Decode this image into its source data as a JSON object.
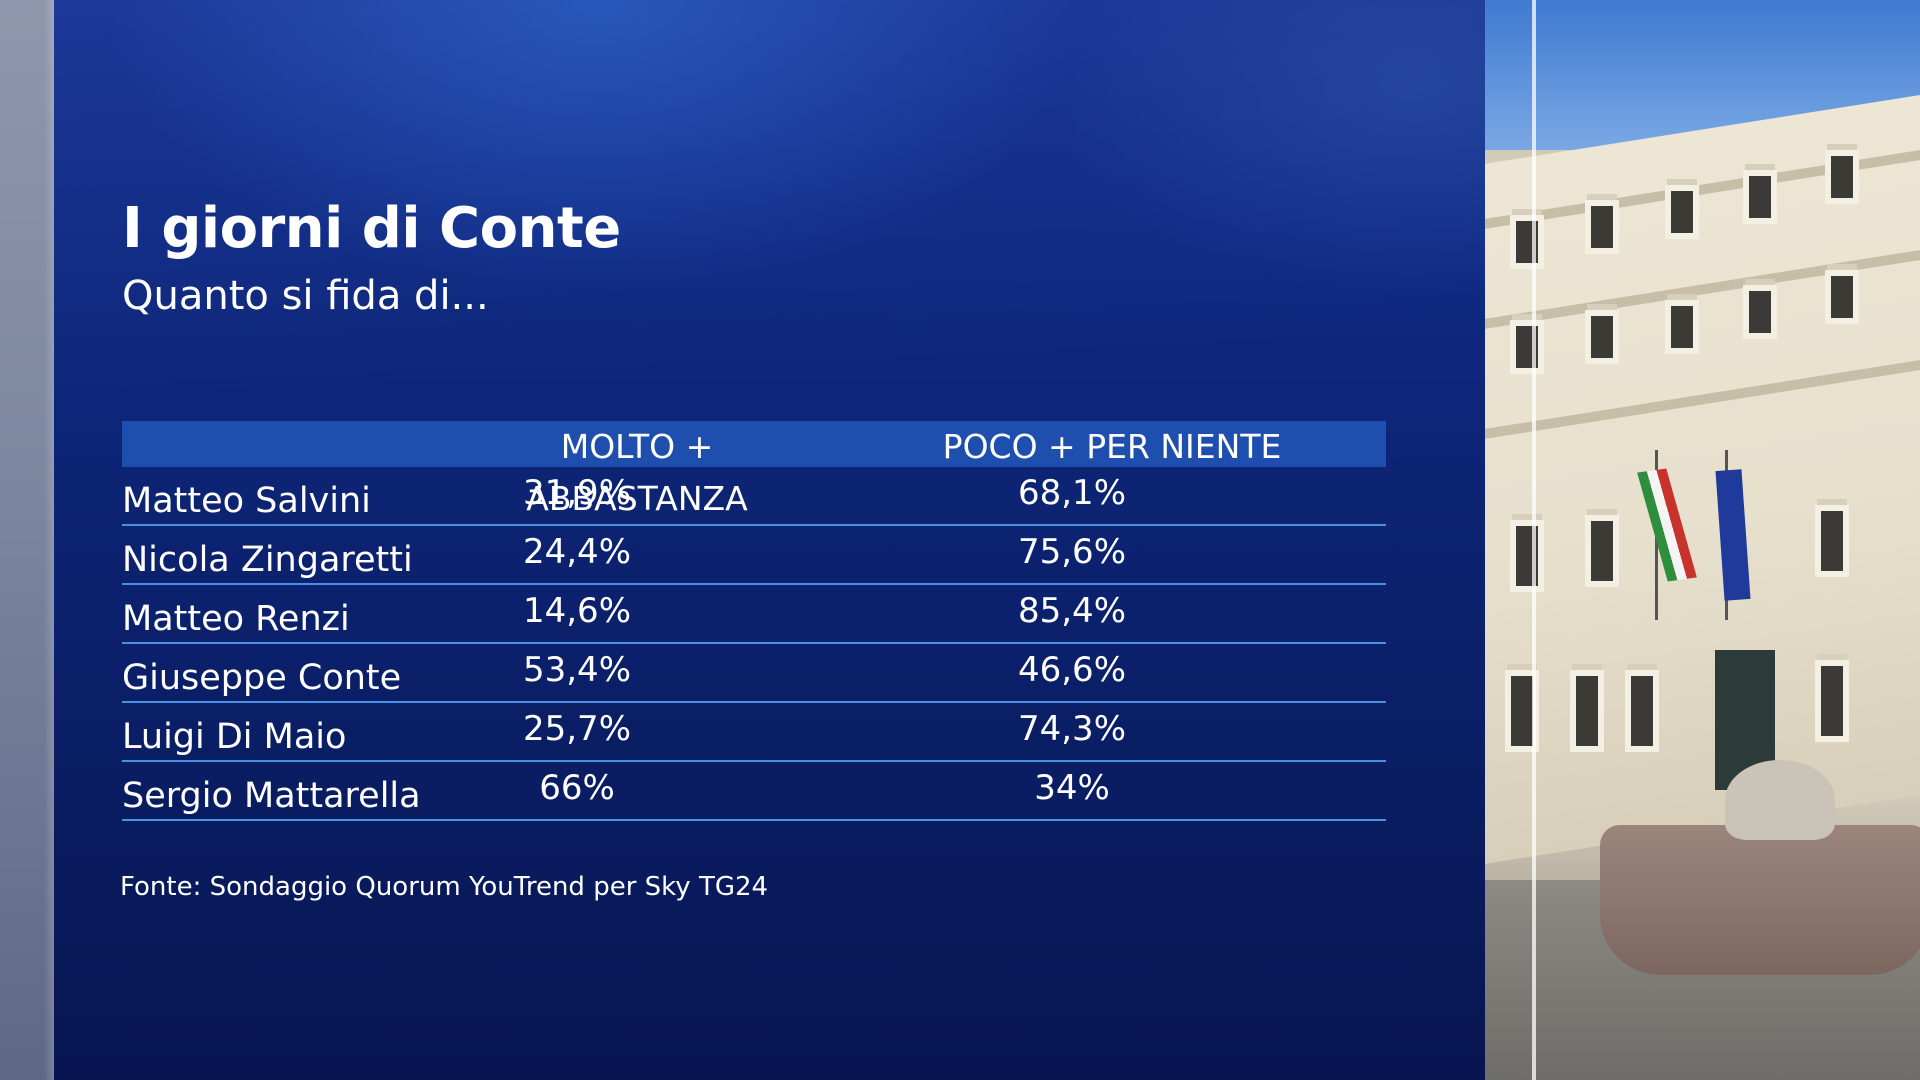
{
  "title": "I giorni di Conte",
  "subtitle": "Quanto si fida di...",
  "table": {
    "headers": [
      "MOLTO + ABBASTANZA",
      "POCO + PER NIENTE"
    ],
    "rows": [
      {
        "name": "Matteo Salvini",
        "molto_abbastanza": "31,9%",
        "poco_per_niente": "68,1%"
      },
      {
        "name": "Nicola Zingaretti",
        "molto_abbastanza": "24,4%",
        "poco_per_niente": "75,6%"
      },
      {
        "name": "Matteo Renzi",
        "molto_abbastanza": "14,6%",
        "poco_per_niente": "85,4%"
      },
      {
        "name": "Giuseppe Conte",
        "molto_abbastanza": "53,4%",
        "poco_per_niente": "46,6%"
      },
      {
        "name": "Luigi Di Maio",
        "molto_abbastanza": "25,7%",
        "poco_per_niente": "74,3%"
      },
      {
        "name": "Sergio Mattarella",
        "molto_abbastanza": "66%",
        "poco_per_niente": "34%"
      }
    ]
  },
  "source": "Fonte: Sondaggio Quorum YouTrend per Sky TG24",
  "colors": {
    "panel": "#0d2474",
    "header_bar": "#1f4fae",
    "row_rule": "#4d8fe0",
    "text": "#ffffff"
  }
}
